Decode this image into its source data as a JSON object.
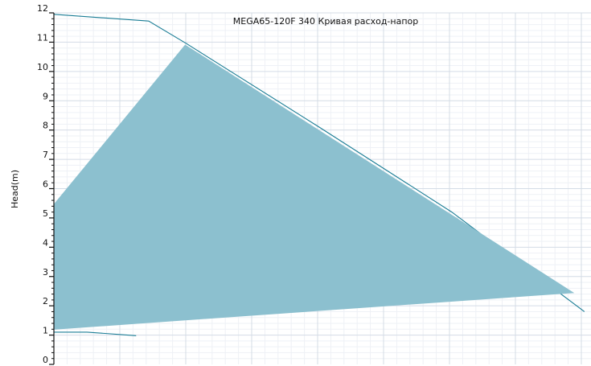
{
  "chart_data": {
    "type": "line",
    "title": "MEGA65-120F 340 Кривая расход-напор",
    "xlabel": "",
    "ylabel": "Head(m)",
    "ylim": [
      0,
      12
    ],
    "y_ticks": [
      "0",
      "1",
      "2",
      "3",
      "4",
      "5",
      "6",
      "7",
      "8",
      "9",
      "10",
      "11",
      "12"
    ],
    "grid": true,
    "colors": {
      "curve": "#1a7d95",
      "area_fill": "#8cc0cf",
      "grid_major": "#d4dce6",
      "grid_minor": "#eef1f6",
      "axis": "#111111"
    },
    "series": [
      {
        "role": "outer-curve",
        "points": [
          [
            0,
            11.95
          ],
          [
            1.43,
            11.72
          ],
          [
            2.0,
            10.95
          ],
          [
            4.0,
            8.1
          ],
          [
            6.0,
            5.2
          ],
          [
            8.0,
            1.8
          ]
        ]
      },
      {
        "role": "operating-area",
        "points": [
          [
            0,
            5.45
          ],
          [
            1.98,
            10.9
          ],
          [
            7.83,
            2.45
          ],
          [
            0,
            1.2
          ]
        ]
      },
      {
        "role": "lower-curve",
        "points": [
          [
            0,
            1.1
          ],
          [
            0.5,
            1.1
          ],
          [
            1.24,
            0.98
          ]
        ]
      }
    ]
  }
}
